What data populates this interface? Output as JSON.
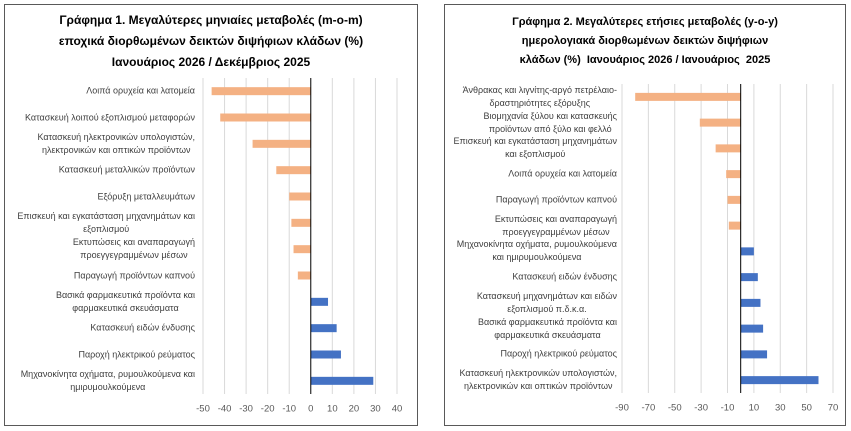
{
  "colors": {
    "negative": "#F4B183",
    "positive": "#4472C4",
    "gridline": "#D9D9D9",
    "axis": "#000000"
  },
  "chart_data": [
    {
      "type": "bar",
      "orientation": "horizontal",
      "title": "Γράφημα 1. Μεγαλύτερες μηνιαίες μεταβολές (m-o-m)\nεποχικά διορθωμένων δεικτών διψήφιων κλάδων (%)\nΙανουάριος 2026 / Δεκέμβριος 2025",
      "categories": [
        "Λοιπά ορυχεία και λατομεία",
        "Κατασκευή λοιπού εξοπλισμού μεταφορών",
        "Κατασκευή ηλεκτρονικών υπολογιστών,\nηλεκτρονικών και οπτικών προϊόντων",
        "Κατασκευή μεταλλικών προϊόντων",
        "Εξόρυξη μεταλλευμάτων",
        "Επισκευή και εγκατάσταση μηχανημάτων και\nεξοπλισμού",
        "Εκτυπώσεις και αναπαραγωγή\nπροεγγεγραμμένων μέσων",
        "Παραγωγή προϊόντων καπνού",
        "Βασικά φαρμακευτικά προϊόντα και\nφαρμακευτικά σκευάσματα",
        "Κατασκευή ειδών ένδυσης",
        "Παροχή ηλεκτρικού ρεύματος",
        "Μηχανοκίνητα οχήματα, ρυμουλκούμενα και\nημιρυμουλκούμενα"
      ],
      "values": [
        -46,
        -42,
        -27,
        -16,
        -10,
        -9,
        -8,
        -6,
        8,
        12,
        14,
        29
      ],
      "xlim": [
        -50,
        40
      ],
      "x_ticks": [
        -50,
        -40,
        -30,
        -20,
        -10,
        0,
        10,
        20,
        30,
        40
      ],
      "grid": true
    },
    {
      "type": "bar",
      "orientation": "horizontal",
      "title": "Γράφημα 2. Μεγαλύτερες ετήσιες μεταβολές (y-o-y)\nημερολογιακά διορθωμένων δεικτών διψήφιων\nκλάδων (%)  Ιανουάριος 2026 / Ιανουάριος  2025",
      "categories": [
        "Άνθρακας και λιγνίτης-αργό πετρέλαιο-\nδραστηριότητες εξόρυξης",
        "Βιομηχανία ξύλου και κατασκευής\nπροϊόντων από ξύλο και φελλό",
        "Επισκευή και εγκατάσταση μηχανημάτων\nκαι εξοπλισμού",
        "Λοιπά ορυχεία και λατομεία",
        "Παραγωγή προϊόντων καπνού",
        "Εκτυπώσεις και αναπαραγωγή\nπροεγγεγραμμένων μέσων",
        "Μηχανοκίνητα οχήματα, ρυμουλκούμενα\nκαι ημιρυμουλκούμενα",
        "Κατασκευή ειδών ένδυσης",
        "Κατασκευή μηχανημάτων και ειδών\nεξοπλισμού π.δ.κ.α.",
        "Βασικά φαρμακευτικά προϊόντα και\nφαρμακευτικά σκευάσματα",
        "Παροχή ηλεκτρικού ρεύματος",
        "Κατασκευή ηλεκτρονικών υπολογιστών,\nηλεκτρονικών και οπτικών προϊόντων"
      ],
      "values": [
        -80,
        -31,
        -19,
        -11,
        -10,
        -9,
        10,
        13,
        15,
        17,
        20,
        59
      ],
      "xlim": [
        -90,
        70
      ],
      "x_ticks": [
        -90,
        -70,
        -50,
        -30,
        -10,
        10,
        30,
        50,
        70
      ],
      "grid": true
    }
  ]
}
